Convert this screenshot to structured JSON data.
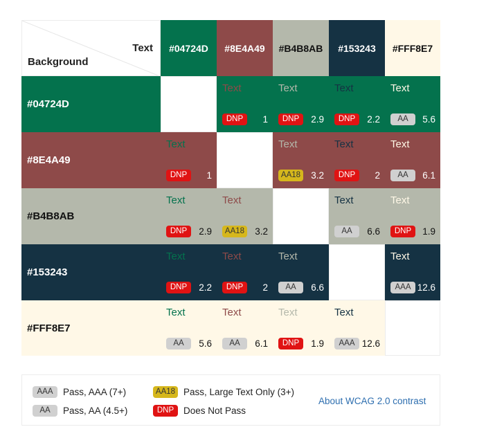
{
  "corner": {
    "text_label": "Text",
    "background_label": "Background"
  },
  "colors": [
    "#04724D",
    "#8E4A49",
    "#B4B8AB",
    "#153243",
    "#FFF8E7"
  ],
  "header_text_colors": [
    "#ffffff",
    "#ffffff",
    "#111111",
    "#ffffff",
    "#111111"
  ],
  "sample_label": "Text",
  "rows": [
    {
      "bg": "#04724D",
      "label": "#04724D",
      "label_color": "#ffffff",
      "cells": [
        null,
        {
          "badge": "DNP",
          "ratio": "1"
        },
        {
          "badge": "DNP",
          "ratio": "2.9"
        },
        {
          "badge": "DNP",
          "ratio": "2.2"
        },
        {
          "badge": "AA",
          "ratio": "5.6"
        }
      ]
    },
    {
      "bg": "#8E4A49",
      "label": "#8E4A49",
      "label_color": "#ffffff",
      "cells": [
        {
          "badge": "DNP",
          "ratio": "1"
        },
        null,
        {
          "badge": "AA18",
          "ratio": "3.2"
        },
        {
          "badge": "DNP",
          "ratio": "2"
        },
        {
          "badge": "AA",
          "ratio": "6.1"
        }
      ]
    },
    {
      "bg": "#B4B8AB",
      "label": "#B4B8AB",
      "label_color": "#111111",
      "cells": [
        {
          "badge": "DNP",
          "ratio": "2.9"
        },
        {
          "badge": "AA18",
          "ratio": "3.2"
        },
        null,
        {
          "badge": "AA",
          "ratio": "6.6"
        },
        {
          "badge": "DNP",
          "ratio": "1.9"
        }
      ]
    },
    {
      "bg": "#153243",
      "label": "#153243",
      "label_color": "#ffffff",
      "cells": [
        {
          "badge": "DNP",
          "ratio": "2.2"
        },
        {
          "badge": "DNP",
          "ratio": "2"
        },
        {
          "badge": "AA",
          "ratio": "6.6"
        },
        null,
        {
          "badge": "AAA",
          "ratio": "12.6"
        }
      ]
    },
    {
      "bg": "#FFF8E7",
      "label": "#FFF8E7",
      "label_color": "#111111",
      "cells": [
        {
          "badge": "AA",
          "ratio": "5.6"
        },
        {
          "badge": "AA",
          "ratio": "6.1"
        },
        {
          "badge": "DNP",
          "ratio": "1.9"
        },
        {
          "badge": "AAA",
          "ratio": "12.6"
        },
        null
      ]
    }
  ],
  "legend": {
    "items": [
      {
        "badge": "AAA",
        "label": "Pass, AAA (7+)"
      },
      {
        "badge": "AA",
        "label": "Pass, AA (4.5+)"
      },
      {
        "badge": "AA18",
        "label": "Pass, Large Text Only (3+)"
      },
      {
        "badge": "DNP",
        "label": "Does Not Pass"
      }
    ],
    "link_label": "About WCAG 2.0 contrast"
  },
  "accent": {
    "dnp": "#e01313",
    "aa": "#d0d0d0",
    "aa18": "#d6b71c",
    "link": "#2d6eaf"
  }
}
